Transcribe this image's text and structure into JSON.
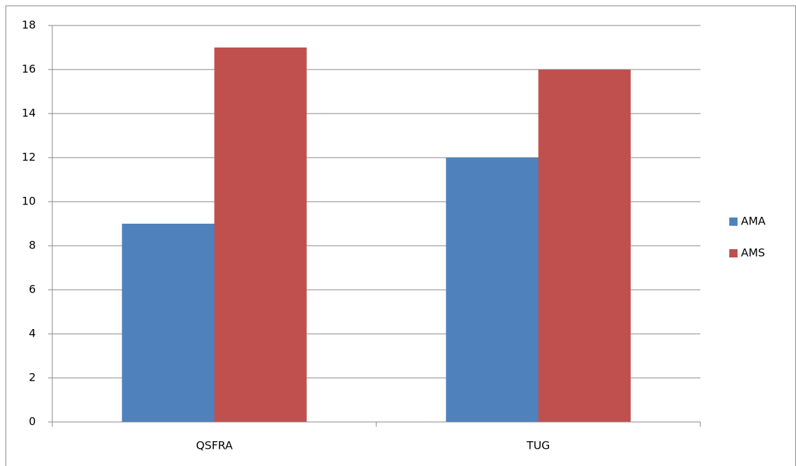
{
  "chart_data": {
    "type": "bar",
    "categories": [
      "QSFRA",
      "TUG"
    ],
    "series": [
      {
        "name": "AMA",
        "color": "#4f81bd",
        "values": [
          9,
          12
        ]
      },
      {
        "name": "AMS",
        "color": "#c0504d",
        "values": [
          17,
          16
        ]
      }
    ],
    "ylim": [
      0,
      18
    ],
    "yticks": [
      0,
      2,
      4,
      6,
      8,
      10,
      12,
      14,
      16,
      18
    ],
    "grid": true,
    "legend": "right"
  }
}
